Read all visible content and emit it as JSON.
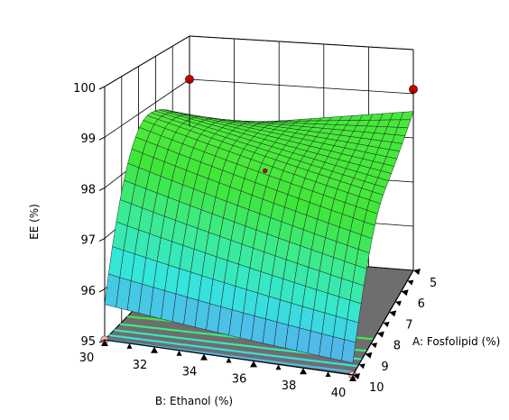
{
  "chart_data": {
    "type": "surface3d",
    "title": "",
    "zlabel": "EE (%)",
    "xlabel": "B: Ethanol (%)",
    "ylabel": "A: Fosfolipid (%)",
    "z_ticks": [
      "95",
      "96",
      "97",
      "98",
      "99",
      "100"
    ],
    "x_ticks": [
      "30",
      "32",
      "34",
      "36",
      "38",
      "40"
    ],
    "y_ticks": [
      "5",
      "6",
      "7",
      "8",
      "9",
      "10"
    ],
    "x_range": [
      30,
      40
    ],
    "y_range": [
      5,
      10
    ],
    "z_range": [
      95,
      100
    ],
    "model": {
      "description_of_surface": "peak near fosfolipid 6.5-7.5, rises toward ethanol 30",
      "z_at": [
        {
          "ethanol": 30,
          "fosfolipid": 5,
          "ee": 97.9
        },
        {
          "ethanol": 30,
          "fosfolipid": 7.5,
          "ee": 98.8
        },
        {
          "ethanol": 30,
          "fosfolipid": 10,
          "ee": 95.7
        },
        {
          "ethanol": 40,
          "fosfolipid": 5,
          "ee": 98.6
        },
        {
          "ethanol": 40,
          "fosfolipid": 7.5,
          "ee": 98.4
        },
        {
          "ethanol": 40,
          "fosfolipid": 10,
          "ee": 95.4
        },
        {
          "ethanol": 35,
          "fosfolipid": 7.5,
          "ee": 98.3
        }
      ]
    },
    "design_points": [
      {
        "ethanol": 30,
        "fosfolipid": 5,
        "ee": 99.0,
        "above_surface": true
      },
      {
        "ethanol": 40,
        "fosfolipid": 5,
        "ee": 99.1,
        "above_surface": true
      },
      {
        "ethanol": 35,
        "fosfolipid": 7.5,
        "ee": 98.3,
        "above_surface": true
      },
      {
        "ethanol": 30,
        "fosfolipid": 10,
        "ee": 95.0,
        "above_surface": false
      },
      {
        "ethanol": 40,
        "fosfolipid": 10,
        "ee": 95.0,
        "above_surface": false
      }
    ],
    "colors": {
      "surface_low": "#5aa8f0",
      "surface_mid": "#34e6c8",
      "surface_high": "#3fe63a",
      "floor": "#6e6e6e",
      "point_above": "#cc0000",
      "point_below": "#f2b8b8"
    },
    "grid": true
  }
}
